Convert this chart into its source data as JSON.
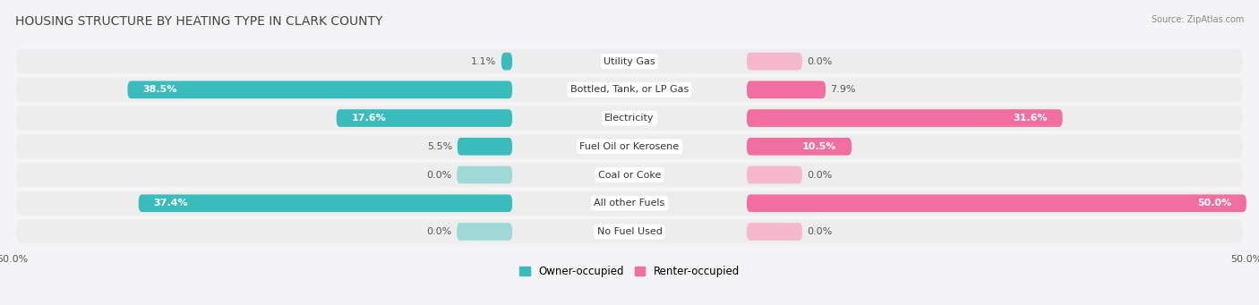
{
  "title": "HOUSING STRUCTURE BY HEATING TYPE IN CLARK COUNTY",
  "source": "Source: ZipAtlas.com",
  "categories": [
    "Utility Gas",
    "Bottled, Tank, or LP Gas",
    "Electricity",
    "Fuel Oil or Kerosene",
    "Coal or Coke",
    "All other Fuels",
    "No Fuel Used"
  ],
  "owner_values": [
    1.1,
    38.5,
    17.6,
    5.5,
    0.0,
    37.4,
    0.0
  ],
  "renter_values": [
    0.0,
    7.9,
    31.6,
    10.5,
    0.0,
    50.0,
    0.0
  ],
  "owner_color": "#3BBCBC",
  "renter_color": "#F06EA0",
  "owner_color_light": "#A0D8D8",
  "renter_color_light": "#F5B8CC",
  "row_bg_color": "#EDEDEE",
  "page_bg_color": "#F4F4F6",
  "axis_limit": 50.0,
  "title_fontsize": 10,
  "label_fontsize": 8,
  "tick_fontsize": 8,
  "value_inside_threshold": 8.0,
  "zero_stub": 4.5
}
